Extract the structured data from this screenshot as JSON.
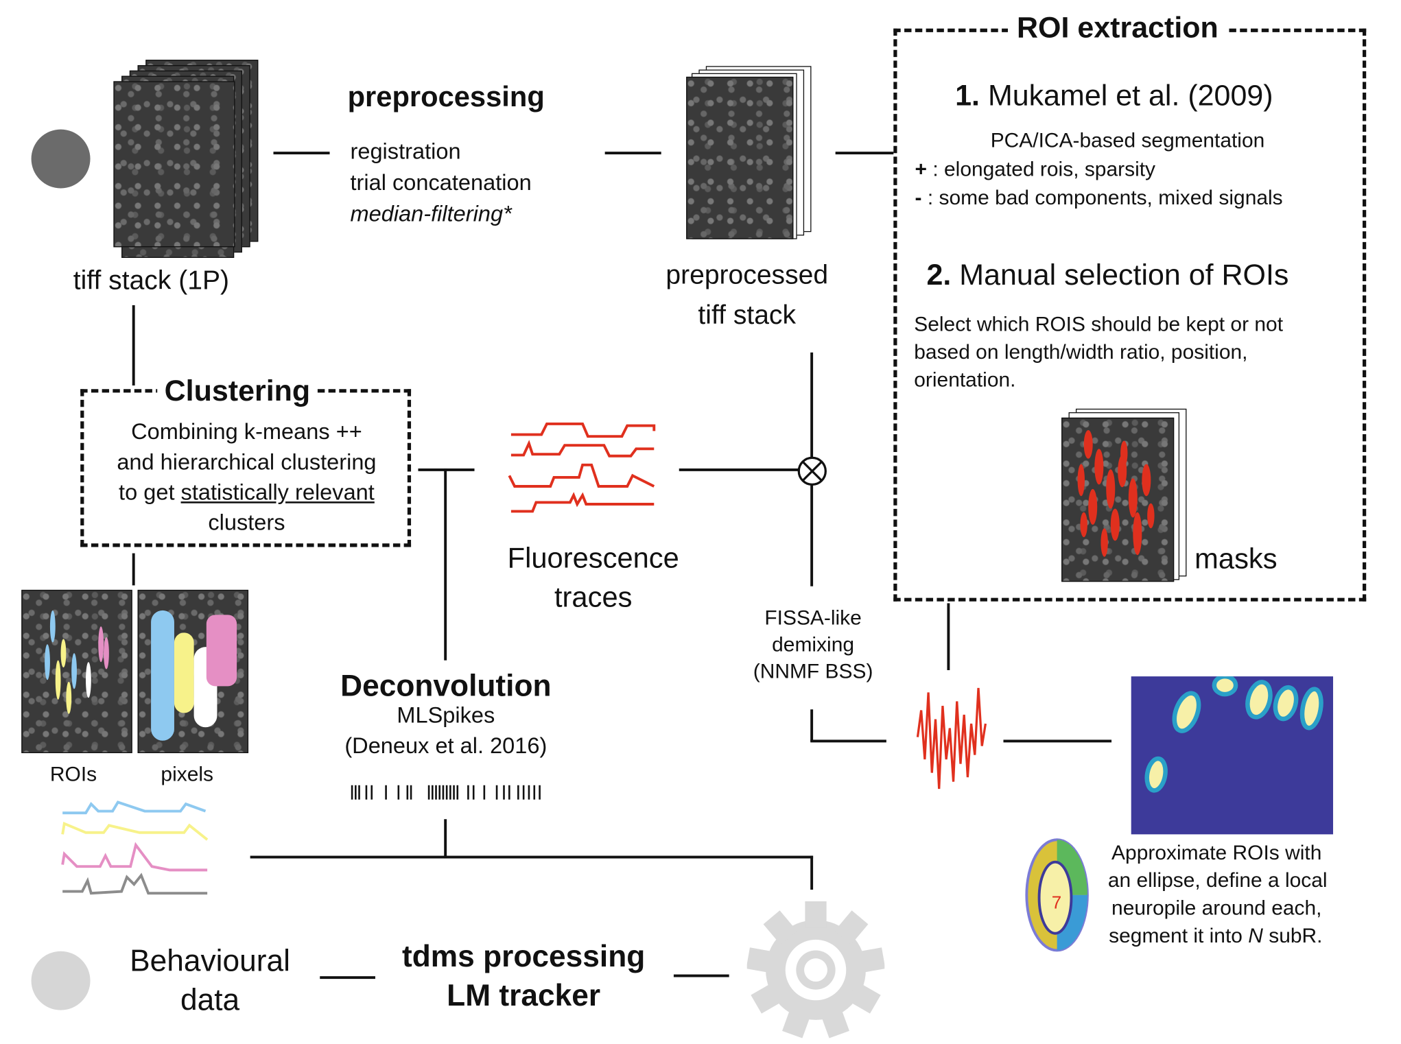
{
  "input": {
    "label": "tiff stack (1P)"
  },
  "preprocessing": {
    "title": "preprocessing",
    "steps": [
      "registration",
      "trial concatenation",
      "median-filtering*"
    ]
  },
  "preprocessed": {
    "line1": "preprocessed",
    "line2": "tiff stack"
  },
  "roi_extraction": {
    "title": "ROI extraction",
    "method1_num": "1.",
    "method1_name": "Mukamel et al. (2009)",
    "method1_desc": "PCA/ICA-based segmentation",
    "method1_plus_sign": "+",
    "method1_plus": " : elongated rois, sparsity",
    "method1_minus_sign": "-",
    "method1_minus": " : some bad components, mixed signals",
    "method2_num": "2.",
    "method2_name": "Manual selection of ROIs",
    "method2_desc": [
      "Select which ROIS should be kept or not",
      "based on length/width ratio, position,",
      "orientation."
    ],
    "masks_label": "masks"
  },
  "clustering": {
    "title": "Clustering",
    "line1": "Combining k-means ++",
    "line2": "and hierarchical clustering",
    "line3_pre": "to get ",
    "line3_underlined": "statistically relevant",
    "line4": "clusters",
    "rois_label": "ROIs",
    "pixels_label": "pixels"
  },
  "fluorescence": {
    "line1": "Fluorescence",
    "line2": "traces"
  },
  "demixing": {
    "lines": [
      "FISSA-like",
      "demixing",
      "(NNMF BSS)"
    ]
  },
  "deconvolution": {
    "title": "Deconvolution",
    "line1": "MLSpikes",
    "line2": "(Deneux et al. 2016)"
  },
  "ellipse": {
    "desc": [
      "Approximate ROIs with",
      "an ellipse, define a local",
      "neuropile around each,"
    ],
    "desc_last_pre": "segment it into ",
    "desc_last_italic": "N",
    "desc_last_post": " subR."
  },
  "behaviour": {
    "line1": "Behavioural",
    "line2": "data"
  },
  "tdms": {
    "line1": "tdms processing",
    "line2": "LM tracker"
  },
  "colors": {
    "trace_red": "#e0301e",
    "cluster_blue": "#8ec9f0",
    "cluster_yellow": "#f7f28a",
    "cluster_pink": "#e58fc4",
    "cluster_gray": "#8c8c8c",
    "circle_dark": "#6b6b6b",
    "circle_light": "#d6d6d6",
    "roi_map_bg": "#3d3a9a"
  }
}
